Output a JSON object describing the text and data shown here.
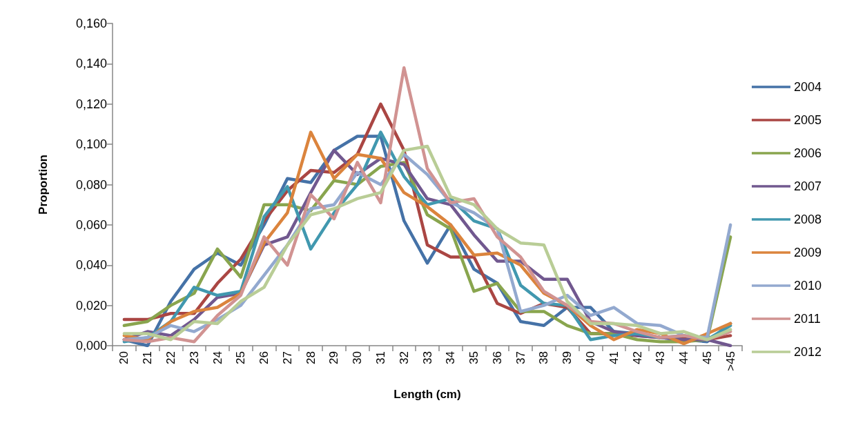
{
  "chart_data": {
    "type": "line",
    "xlabel": "Length (cm)",
    "ylabel": "Proportion",
    "categories": [
      "20",
      "21",
      "22",
      "23",
      "24",
      "25",
      "26",
      "27",
      "28",
      "29",
      "30",
      "31",
      "32",
      "33",
      "34",
      "35",
      "36",
      "37",
      "38",
      "39",
      "40",
      "41",
      "42",
      "43",
      "44",
      "45",
      ">45"
    ],
    "ylim": [
      0,
      0.16
    ],
    "yticks": [
      {
        "value": 0,
        "label": "0,000"
      },
      {
        "value": 0.02,
        "label": "0,020"
      },
      {
        "value": 0.04,
        "label": "0,040"
      },
      {
        "value": 0.06,
        "label": "0,060"
      },
      {
        "value": 0.08,
        "label": "0,080"
      },
      {
        "value": 0.1,
        "label": "0,100"
      },
      {
        "value": 0.12,
        "label": "0,120"
      },
      {
        "value": 0.14,
        "label": "0,140"
      },
      {
        "value": 0.16,
        "label": "0,160"
      }
    ],
    "grid": false,
    "legend": "right",
    "marker": "none",
    "line_style": "solid",
    "series": [
      {
        "name": "2004",
        "color": "#4572a7",
        "values": [
          0.003,
          0.0,
          0.022,
          0.038,
          0.046,
          0.04,
          0.06,
          0.083,
          0.081,
          0.097,
          0.104,
          0.104,
          0.062,
          0.041,
          0.06,
          0.038,
          0.031,
          0.012,
          0.01,
          0.019,
          0.019,
          0.007,
          0.006,
          0.004,
          0.003,
          0.002,
          0.011
        ]
      },
      {
        "name": "2005",
        "color": "#aa4643",
        "values": [
          0.013,
          0.013,
          0.016,
          0.016,
          0.031,
          0.043,
          0.062,
          0.077,
          0.087,
          0.086,
          0.095,
          0.12,
          0.097,
          0.05,
          0.044,
          0.044,
          0.021,
          0.016,
          0.021,
          0.019,
          0.006,
          0.006,
          0.005,
          0.004,
          0.004,
          0.003,
          0.005
        ]
      },
      {
        "name": "2006",
        "color": "#89a54e",
        "values": [
          0.01,
          0.012,
          0.02,
          0.026,
          0.048,
          0.034,
          0.07,
          0.07,
          0.067,
          0.082,
          0.08,
          0.089,
          0.091,
          0.065,
          0.058,
          0.027,
          0.031,
          0.017,
          0.017,
          0.01,
          0.006,
          0.006,
          0.003,
          0.002,
          0.002,
          0.003,
          0.054
        ]
      },
      {
        "name": "2007",
        "color": "#71588f",
        "values": [
          0.003,
          0.007,
          0.005,
          0.013,
          0.024,
          0.026,
          0.05,
          0.054,
          0.076,
          0.097,
          0.085,
          0.093,
          0.09,
          0.073,
          0.07,
          0.055,
          0.042,
          0.042,
          0.033,
          0.033,
          0.012,
          0.007,
          0.005,
          0.004,
          0.003,
          0.003,
          0.0
        ]
      },
      {
        "name": "2008",
        "color": "#4198af",
        "values": [
          0.002,
          0.004,
          0.012,
          0.029,
          0.025,
          0.027,
          0.064,
          0.079,
          0.048,
          0.066,
          0.08,
          0.106,
          0.084,
          0.07,
          0.073,
          0.062,
          0.058,
          0.03,
          0.021,
          0.02,
          0.003,
          0.005,
          0.006,
          0.004,
          0.005,
          0.003,
          0.01
        ]
      },
      {
        "name": "2009",
        "color": "#db843d",
        "values": [
          0.005,
          0.003,
          0.012,
          0.017,
          0.019,
          0.026,
          0.051,
          0.066,
          0.106,
          0.083,
          0.095,
          0.093,
          0.076,
          0.069,
          0.06,
          0.045,
          0.046,
          0.04,
          0.026,
          0.02,
          0.01,
          0.003,
          0.008,
          0.006,
          0.001,
          0.006,
          0.011
        ]
      },
      {
        "name": "2010",
        "color": "#93a9cf",
        "values": [
          0.003,
          0.004,
          0.01,
          0.007,
          0.013,
          0.02,
          0.035,
          0.05,
          0.068,
          0.07,
          0.086,
          0.08,
          0.095,
          0.085,
          0.071,
          0.066,
          0.058,
          0.017,
          0.02,
          0.025,
          0.015,
          0.019,
          0.011,
          0.01,
          0.005,
          0.004,
          0.06
        ]
      },
      {
        "name": "2011",
        "color": "#d19392",
        "values": [
          0.003,
          0.002,
          0.004,
          0.002,
          0.015,
          0.025,
          0.054,
          0.04,
          0.075,
          0.063,
          0.091,
          0.071,
          0.138,
          0.088,
          0.071,
          0.073,
          0.054,
          0.044,
          0.027,
          0.02,
          0.012,
          0.011,
          0.007,
          0.004,
          0.005,
          0.003,
          0.007
        ]
      },
      {
        "name": "2012",
        "color": "#b9cd96",
        "values": [
          0.006,
          0.006,
          0.003,
          0.012,
          0.011,
          0.022,
          0.029,
          0.05,
          0.065,
          0.068,
          0.073,
          0.076,
          0.097,
          0.099,
          0.074,
          0.07,
          0.058,
          0.051,
          0.05,
          0.022,
          0.011,
          0.011,
          0.01,
          0.006,
          0.007,
          0.003,
          0.008
        ]
      }
    ]
  }
}
